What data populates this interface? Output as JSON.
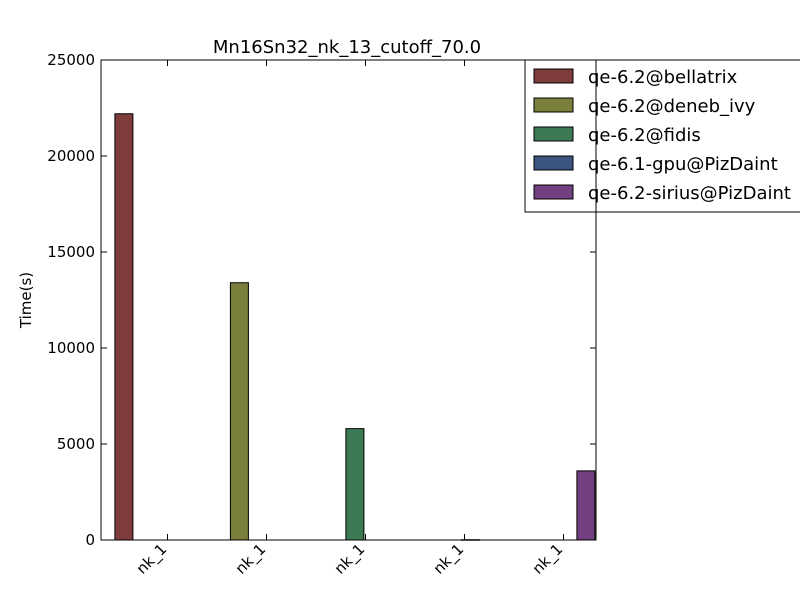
{
  "chart_data": {
    "type": "bar",
    "title": "Mn16Sn32_nk_13_cutoff_70.0",
    "xlabel": "",
    "ylabel": "Time(s)",
    "ylim": [
      0,
      25000
    ],
    "yticks": [
      0,
      5000,
      10000,
      15000,
      20000,
      25000
    ],
    "categories": [
      "nk_1",
      "nk_1",
      "nk_1",
      "nk_1",
      "nk_1"
    ],
    "series": [
      {
        "name": "qe-6.2@bellatrix",
        "color": "#7f3c3c",
        "values": [
          22200,
          0,
          0,
          0,
          0
        ]
      },
      {
        "name": "qe-6.2@deneb_ivy",
        "color": "#7a7f3c",
        "values": [
          0,
          13400,
          0,
          0,
          0
        ]
      },
      {
        "name": "qe-6.2@fidis",
        "color": "#3c7a55",
        "values": [
          0,
          0,
          5800,
          0,
          0
        ]
      },
      {
        "name": "qe-6.1-gpu@PizDaint",
        "color": "#3c5580",
        "values": [
          0,
          0,
          0,
          15,
          0
        ]
      },
      {
        "name": "qe-6.2-sirius@PizDaint",
        "color": "#733f80",
        "values": [
          0,
          0,
          0,
          0,
          3600
        ]
      }
    ],
    "grid": false,
    "legend_position": "top-right"
  }
}
